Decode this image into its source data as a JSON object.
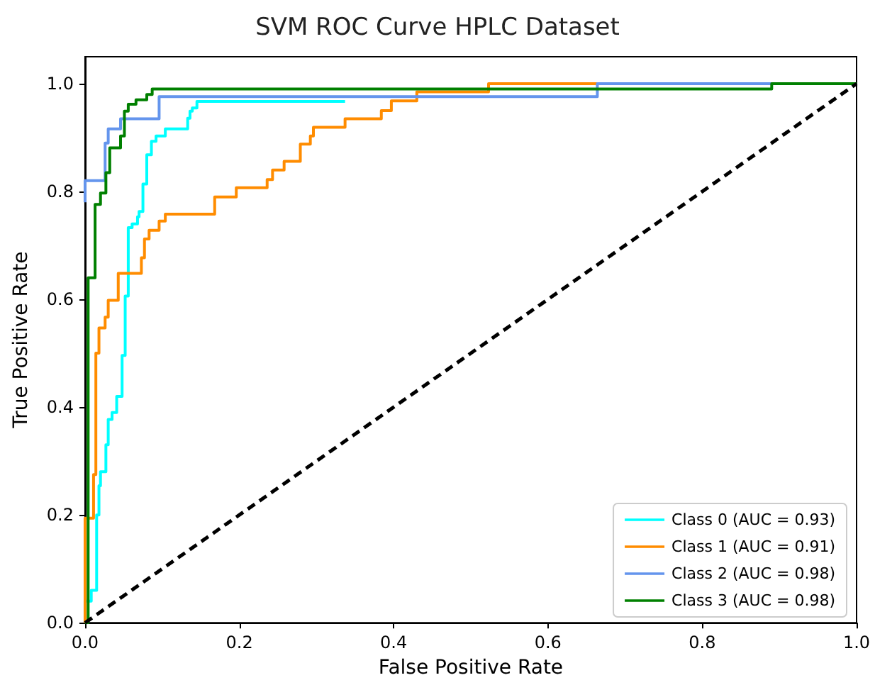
{
  "chart_data": {
    "type": "line",
    "title": "SVM ROC Curve HPLC Dataset",
    "xlabel": "False Positive Rate",
    "ylabel": "True Positive Rate",
    "xlim": [
      0,
      1
    ],
    "ylim": [
      0,
      1.05
    ],
    "xticks": [
      {
        "value": 0,
        "label": "0.0"
      },
      {
        "value": 0.2,
        "label": "0.2"
      },
      {
        "value": 0.4,
        "label": "0.4"
      },
      {
        "value": 0.6,
        "label": "0.6"
      },
      {
        "value": 0.8,
        "label": "0.8"
      },
      {
        "value": 1,
        "label": "1.0"
      }
    ],
    "yticks": [
      {
        "value": 0,
        "label": "0.0"
      },
      {
        "value": 0.2,
        "label": "0.2"
      },
      {
        "value": 0.4,
        "label": "0.4"
      },
      {
        "value": 0.6,
        "label": "0.6"
      },
      {
        "value": 0.8,
        "label": "0.8"
      },
      {
        "value": 1,
        "label": "1.0"
      }
    ],
    "grid": false,
    "legend": "bottom right",
    "marker": "none",
    "line_style": "solid",
    "series": [
      {
        "name": "Class 0 (AUC = 0.93)",
        "color": "#00ffff",
        "x": [
          0,
          0,
          0.008,
          0.008,
          0.015,
          0.015,
          0.018,
          0.018,
          0.02,
          0.02,
          0.027,
          0.027,
          0.03,
          0.03,
          0.035,
          0.035,
          0.041,
          0.041,
          0.048,
          0.048,
          0.052,
          0.052,
          0.056,
          0.056,
          0.061,
          0.061,
          0.068,
          0.068,
          0.07,
          0.07,
          0.075,
          0.075,
          0.08,
          0.08,
          0.086,
          0.086,
          0.092,
          0.092,
          0.104,
          0.104,
          0.133,
          0.133,
          0.136,
          0.136,
          0.139,
          0.139,
          0.145,
          0.145,
          0.337
        ],
        "values": [
          0,
          0.04,
          0.04,
          0.06,
          0.06,
          0.2,
          0.2,
          0.254,
          0.254,
          0.28,
          0.28,
          0.33,
          0.33,
          0.377,
          0.377,
          0.39,
          0.39,
          0.42,
          0.42,
          0.496,
          0.496,
          0.606,
          0.606,
          0.733,
          0.733,
          0.74,
          0.74,
          0.753,
          0.753,
          0.763,
          0.763,
          0.814,
          0.814,
          0.868,
          0.868,
          0.893,
          0.893,
          0.903,
          0.903,
          0.916,
          0.916,
          0.936,
          0.936,
          0.949,
          0.949,
          0.955,
          0.955,
          0.967,
          0.967
        ]
      },
      {
        "name": "Class 1 (AUC = 0.91)",
        "color": "#ff8c00",
        "x": [
          0,
          0,
          0.011,
          0.011,
          0.014,
          0.014,
          0.018,
          0.018,
          0.026,
          0.026,
          0.03,
          0.03,
          0.043,
          0.043,
          0.073,
          0.073,
          0.077,
          0.077,
          0.083,
          0.083,
          0.096,
          0.096,
          0.104,
          0.104,
          0.168,
          0.168,
          0.196,
          0.196,
          0.236,
          0.236,
          0.243,
          0.243,
          0.258,
          0.258,
          0.279,
          0.279,
          0.292,
          0.292,
          0.296,
          0.296,
          0.337,
          0.337,
          0.384,
          0.384,
          0.397,
          0.397,
          0.43,
          0.43,
          0.523,
          0.523,
          0.664
        ],
        "values": [
          0,
          0.194,
          0.194,
          0.275,
          0.275,
          0.5,
          0.5,
          0.547,
          0.547,
          0.567,
          0.567,
          0.598,
          0.598,
          0.648,
          0.648,
          0.677,
          0.677,
          0.712,
          0.712,
          0.728,
          0.728,
          0.745,
          0.745,
          0.758,
          0.758,
          0.79,
          0.79,
          0.807,
          0.807,
          0.822,
          0.822,
          0.84,
          0.84,
          0.856,
          0.856,
          0.888,
          0.888,
          0.903,
          0.903,
          0.919,
          0.919,
          0.935,
          0.935,
          0.95,
          0.95,
          0.968,
          0.968,
          0.985,
          0.985,
          1,
          1
        ]
      },
      {
        "name": "Class 2 (AUC = 0.98)",
        "color": "#6495ed",
        "x": [
          0,
          0,
          0.026,
          0.026,
          0.03,
          0.03,
          0.046,
          0.046,
          0.096,
          0.096,
          0.664,
          0.664,
          0.89
        ],
        "values": [
          0.78,
          0.82,
          0.82,
          0.89,
          0.89,
          0.916,
          0.916,
          0.935,
          0.935,
          0.976,
          0.976,
          1,
          1
        ]
      },
      {
        "name": "Class 3 (AUC = 0.98)",
        "color": "#008000",
        "x": [
          0,
          0.004,
          0.004,
          0.013,
          0.013,
          0.02,
          0.02,
          0.027,
          0.027,
          0.032,
          0.032,
          0.046,
          0.046,
          0.051,
          0.051,
          0.056,
          0.056,
          0.066,
          0.066,
          0.08,
          0.08,
          0.087,
          0.087,
          0.89,
          0.89,
          1
        ],
        "values": [
          0,
          0,
          0.64,
          0.64,
          0.776,
          0.776,
          0.797,
          0.797,
          0.835,
          0.835,
          0.881,
          0.881,
          0.903,
          0.903,
          0.949,
          0.949,
          0.962,
          0.962,
          0.97,
          0.97,
          0.98,
          0.98,
          0.99,
          0.99,
          1,
          1
        ]
      },
      {
        "color": "#000000",
        "line_style": "dashed",
        "x": [
          0,
          1
        ],
        "values": [
          0,
          1
        ]
      }
    ]
  }
}
